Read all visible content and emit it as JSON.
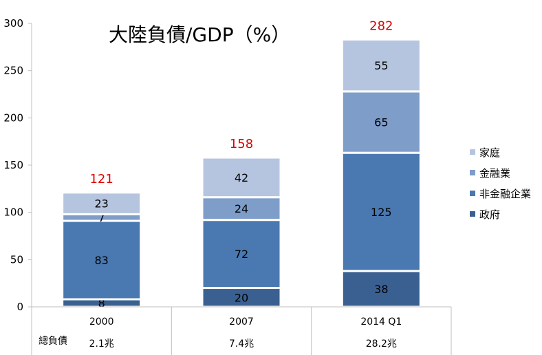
{
  "chart_data": {
    "type": "bar",
    "stacked": true,
    "title": "大陸負債/GDP（%）",
    "categories": [
      "2000",
      "2007",
      "2014 Q1"
    ],
    "series": [
      {
        "name": "政府",
        "values": [
          8,
          20,
          38
        ],
        "color": "#3a5f91"
      },
      {
        "name": "非金融企業",
        "values": [
          83,
          72,
          125
        ],
        "color": "#4a78b0"
      },
      {
        "name": "金融業",
        "values": [
          7,
          24,
          65
        ],
        "color": "#7e9dc9"
      },
      {
        "name": "家庭",
        "values": [
          23,
          42,
          55
        ],
        "color": "#b6c5df"
      }
    ],
    "totals": [
      121,
      158,
      282
    ],
    "ylim": [
      0,
      300
    ],
    "yticks": [
      0,
      50,
      100,
      150,
      200,
      250,
      300
    ],
    "xlabel": "",
    "ylabel": "",
    "legend": "right",
    "grid": false,
    "table": {
      "row_label": "總負債",
      "values": [
        "2.1兆",
        "7.4兆",
        "28.2兆"
      ]
    }
  }
}
